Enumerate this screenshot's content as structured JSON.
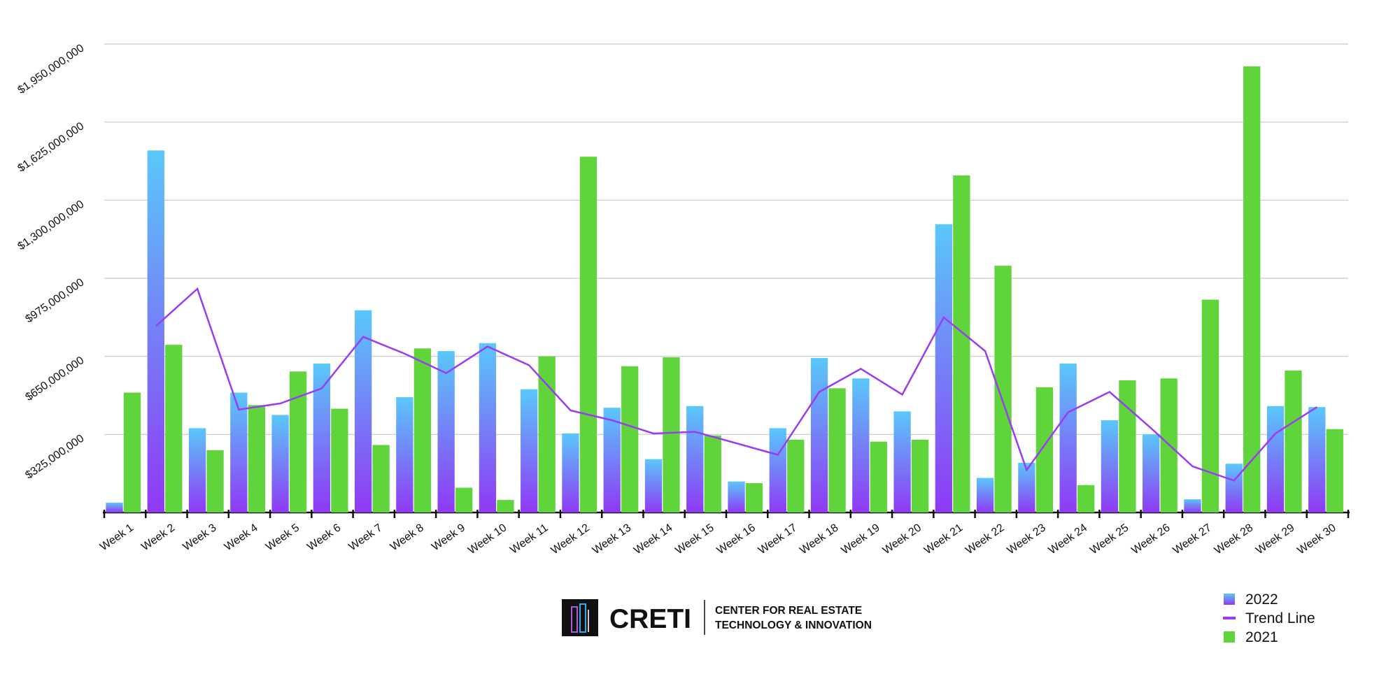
{
  "chart_data": {
    "type": "bar",
    "categories": [
      "Week 1",
      "Week 2",
      "Week 3",
      "Week 4",
      "Week 5",
      "Week 6",
      "Week 7",
      "Week 8",
      "Week 9",
      "Week 10",
      "Week 11",
      "Week 12",
      "Week 13",
      "Week 14",
      "Week 15",
      "Week 16",
      "Week 17",
      "Week 18",
      "Week 19",
      "Week 20",
      "Week 21",
      "Week 22",
      "Week 23",
      "Week 24",
      "Week 25",
      "Week 26",
      "Week 27",
      "Week 28",
      "Week 29",
      "Week 30"
    ],
    "series": [
      {
        "name": "2022",
        "type": "bar",
        "color": "#5ac8fa",
        "gradient": [
          "#5ac8fa",
          "#9038f5"
        ],
        "values": [
          41000000,
          1507000000,
          351000000,
          499000000,
          406000000,
          620000000,
          842000000,
          480000000,
          672000000,
          705000000,
          513000000,
          329000000,
          436000000,
          222000000,
          443000000,
          129000000,
          351000000,
          643000000,
          558000000,
          421000000,
          1200000000,
          144000000,
          207000000,
          620000000,
          384000000,
          325000000,
          55000000,
          203000000,
          443000000,
          439000000
        ]
      },
      {
        "name": "Trend Line",
        "type": "line",
        "color": "#9b3cf0",
        "values": [
          null,
          776000000,
          931000000,
          428000000,
          454000000,
          517000000,
          731000000,
          661000000,
          580000000,
          691000000,
          613000000,
          425000000,
          384000000,
          329000000,
          336000000,
          288000000,
          240000000,
          502000000,
          598000000,
          491000000,
          812000000,
          672000000,
          177000000,
          417000000,
          502000000,
          351000000,
          192000000,
          133000000,
          329000000,
          439000000
        ]
      },
      {
        "name": "2021",
        "type": "bar",
        "color": "#5fd53b",
        "values": [
          499000000,
          698000000,
          259000000,
          447000000,
          587000000,
          432000000,
          281000000,
          683000000,
          103000000,
          52000000,
          650000000,
          1481000000,
          609000000,
          646000000,
          321000000,
          122000000,
          303000000,
          517000000,
          295000000,
          303000000,
          1403000000,
          1027000000,
          521000000,
          114000000,
          550000000,
          558000000,
          886000000,
          1857000000,
          591000000,
          347000000
        ]
      }
    ],
    "ylim": [
      0,
      1950000000
    ],
    "yticks": [
      {
        "value": 325000000,
        "label": "$325,000,000"
      },
      {
        "value": 650000000,
        "label": "$650,000,000"
      },
      {
        "value": 975000000,
        "label": "$975,000,000"
      },
      {
        "value": 1300000000,
        "label": "$1,300,000,000"
      },
      {
        "value": 1625000000,
        "label": "$1,625,000,000"
      },
      {
        "value": 1950000000,
        "label": "$1,950,000,000"
      }
    ],
    "grid": true,
    "legend": "bottom-right"
  },
  "logo": {
    "name": "CRETI",
    "line1": "CENTER FOR REAL ESTATE",
    "line2": "TECHNOLOGY & INNOVATION"
  }
}
